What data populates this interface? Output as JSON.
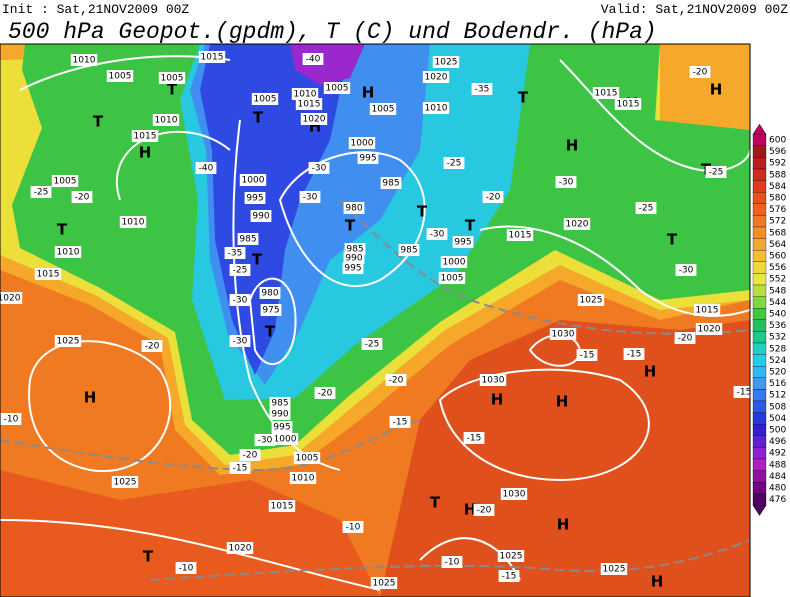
{
  "header": {
    "init": "Init : Sat,21NOV2009 00Z",
    "valid": "Valid: Sat,21NOV2009 00Z",
    "title": "500 hPa Geopot.(gpdm), T (C) und Bodendr. (hPa)"
  },
  "legend": {
    "levels": [
      600,
      596,
      592,
      588,
      584,
      580,
      576,
      572,
      568,
      564,
      560,
      556,
      552,
      548,
      544,
      540,
      536,
      532,
      528,
      524,
      520,
      516,
      512,
      508,
      504,
      500,
      496,
      492,
      488,
      484,
      480,
      476
    ],
    "colors": [
      "#c00060",
      "#a01818",
      "#b82020",
      "#d02a20",
      "#e03a20",
      "#e85020",
      "#f06020",
      "#f07828",
      "#f09028",
      "#f0a830",
      "#f0c030",
      "#f0d838",
      "#e8e840",
      "#b8e040",
      "#80d840",
      "#40c840",
      "#20c060",
      "#20c890",
      "#20d0c0",
      "#20d0e0",
      "#30b8f0",
      "#4098f0",
      "#3878f0",
      "#3058e8",
      "#2838e0",
      "#3020d0",
      "#6020d0",
      "#9020d0",
      "#b020c0",
      "#9010a0",
      "#700880",
      "#500060"
    ]
  },
  "map": {
    "pressure_centers": [
      "T",
      "H",
      "T",
      "T",
      "T",
      "H",
      "H",
      "T",
      "T",
      "T",
      "T",
      "T",
      "T",
      "H",
      "H",
      "H",
      "T",
      "T",
      "H",
      "H",
      "H",
      "H",
      "T",
      "H",
      "H",
      "H",
      "T"
    ],
    "isobar_labels": [
      "1010",
      "1005",
      "1005",
      "1015",
      "1010",
      "1015",
      "1005",
      "1010",
      "1015",
      "1020",
      "1005",
      "1005",
      "1010",
      "1020",
      "1025",
      "1000",
      "995",
      "985",
      "980",
      "985",
      "990",
      "995",
      "985",
      "1000",
      "1005",
      "995",
      "1000",
      "995",
      "990",
      "985",
      "980",
      "975",
      "985",
      "990",
      "995",
      "1000",
      "1005",
      "1010",
      "1015",
      "1020",
      "1025",
      "1025",
      "1020",
      "1015",
      "1010",
      "1010",
      "1005",
      "1015",
      "1020",
      "1025",
      "1030",
      "1030",
      "1030",
      "1025",
      "1025",
      "1025",
      "1015",
      "1020",
      "1015",
      "1015"
    ],
    "temperature_labels": [
      "-20",
      "-25",
      "-25",
      "-30",
      "-30",
      "-25",
      "-20",
      "-30",
      "-35",
      "-40",
      "-40",
      "-30",
      "-30",
      "-35",
      "-25",
      "-30",
      "-30",
      "-25",
      "-20",
      "-15",
      "-20",
      "-15",
      "-15",
      "-20",
      "-15",
      "-15",
      "-20",
      "-10",
      "-10",
      "-15",
      "-10",
      "-10",
      "-20",
      "-20",
      "-25",
      "-30",
      "-20",
      "-15"
    ]
  }
}
